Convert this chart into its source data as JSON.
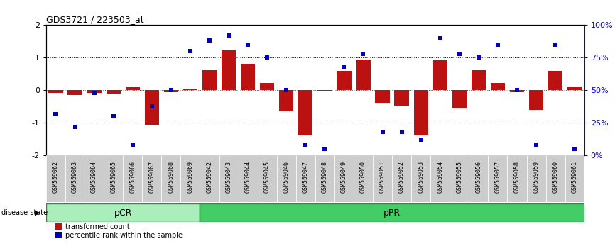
{
  "title": "GDS3721 / 223503_at",
  "samples": [
    "GSM559062",
    "GSM559063",
    "GSM559064",
    "GSM559065",
    "GSM559066",
    "GSM559067",
    "GSM559068",
    "GSM559069",
    "GSM559042",
    "GSM559043",
    "GSM559044",
    "GSM559045",
    "GSM559046",
    "GSM559047",
    "GSM559048",
    "GSM559049",
    "GSM559050",
    "GSM559051",
    "GSM559052",
    "GSM559053",
    "GSM559054",
    "GSM559055",
    "GSM559056",
    "GSM559057",
    "GSM559058",
    "GSM559059",
    "GSM559060",
    "GSM559061"
  ],
  "bar_values": [
    -0.08,
    -0.15,
    -0.08,
    -0.1,
    0.1,
    -1.05,
    -0.05,
    0.05,
    0.62,
    1.22,
    0.82,
    0.22,
    -0.65,
    -1.38,
    -0.02,
    0.6,
    0.95,
    -0.38,
    -0.5,
    -1.38,
    0.92,
    -0.55,
    0.62,
    0.22,
    -0.05,
    -0.6,
    0.6,
    0.12
  ],
  "dot_values": [
    32,
    22,
    48,
    30,
    8,
    38,
    50,
    80,
    88,
    92,
    85,
    75,
    50,
    8,
    5,
    68,
    78,
    18,
    18,
    12,
    90,
    78,
    75,
    85,
    50,
    8,
    85,
    5
  ],
  "pcr_count": 8,
  "group_labels": [
    "pCR",
    "pPR"
  ],
  "ylim": [
    -2,
    2
  ],
  "yticks": [
    -2,
    -1,
    0,
    1,
    2
  ],
  "right_ytick_positions": [
    0,
    25,
    50,
    75,
    100
  ],
  "right_ytick_labels": [
    "0%",
    "25%",
    "50%",
    "75%",
    "100%"
  ],
  "bar_color": "#bb1111",
  "dot_color": "#0000bb",
  "pcr_color": "#aaeebb",
  "ppr_color": "#44cc66",
  "label_bg_color": "#cccccc",
  "legend_bar_label": "transformed count",
  "legend_dot_label": "percentile rank within the sample",
  "disease_state_label": "disease state"
}
